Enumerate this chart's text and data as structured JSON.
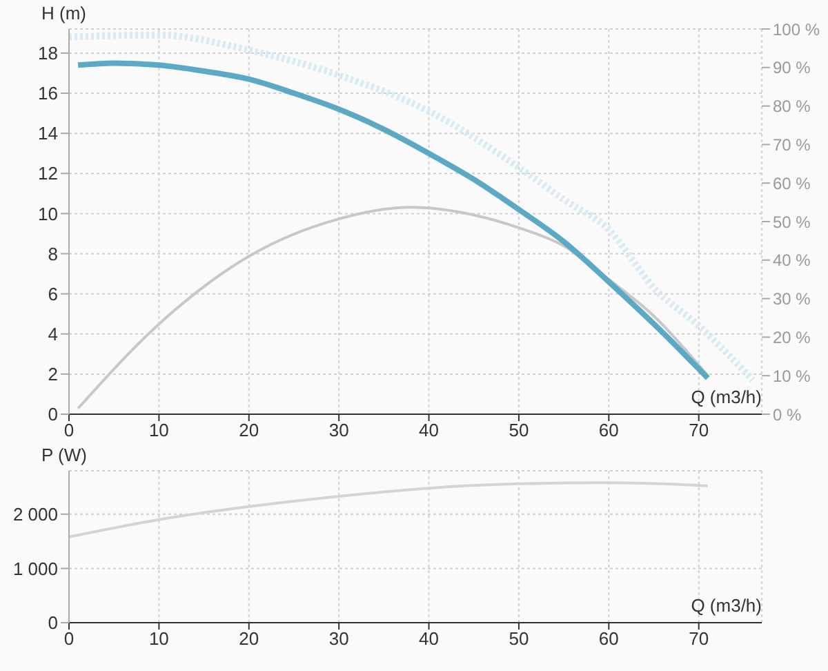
{
  "chart_data": [
    {
      "type": "line",
      "ylabel": "H (m)",
      "xlabel": "Q (m3/h)",
      "xlim": [
        0,
        77
      ],
      "xticks": [
        0,
        10,
        20,
        30,
        40,
        50,
        60,
        70
      ],
      "ylim": [
        0,
        19.2
      ],
      "yticks": [
        0,
        2,
        4,
        6,
        8,
        10,
        12,
        14,
        16,
        18
      ],
      "y2lim": [
        0,
        100
      ],
      "y2ticks": [
        {
          "value": 0,
          "label": "0 %"
        },
        {
          "value": 10,
          "label": "10 %"
        },
        {
          "value": 20,
          "label": "20 %"
        },
        {
          "value": 30,
          "label": "30 %"
        },
        {
          "value": 40,
          "label": "40 %"
        },
        {
          "value": 50,
          "label": "50 %"
        },
        {
          "value": 60,
          "label": "60 %"
        },
        {
          "value": 70,
          "label": "70 %"
        },
        {
          "value": 80,
          "label": "80 %"
        },
        {
          "value": 90,
          "label": "90 %"
        },
        {
          "value": 100,
          "label": "100 %"
        }
      ],
      "grid": true,
      "series": [
        {
          "color": "#d6ebf4",
          "line_style": "dotted",
          "x": [
            0,
            10,
            20,
            30,
            40,
            50,
            55,
            60,
            65,
            70,
            76
          ],
          "values": [
            18.8,
            18.9,
            18.15,
            16.9,
            15.1,
            12.3,
            10.7,
            9.2,
            6.3,
            4.4,
            1.7
          ]
        },
        {
          "color": "#c8c8c8",
          "axis": "y2",
          "x": [
            1,
            10,
            20,
            30,
            38,
            45,
            50,
            55,
            60,
            65,
            71
          ],
          "values": [
            1.5,
            23.4,
            41,
            50.7,
            53.7,
            51.7,
            48.4,
            43.7,
            35,
            25.5,
            10
          ]
        },
        {
          "color": "#5ba9c5",
          "x": [
            1,
            5,
            10,
            15,
            20,
            25,
            30,
            35,
            40,
            45,
            50,
            55,
            60,
            65,
            71
          ],
          "values": [
            17.4,
            17.5,
            17.4,
            17.1,
            16.7,
            16.0,
            15.2,
            14.2,
            13.0,
            11.7,
            10.2,
            8.6,
            6.6,
            4.5,
            1.8
          ]
        }
      ]
    },
    {
      "type": "line",
      "ylabel": "P (W)",
      "xlabel": "Q (m3/h)",
      "xlim": [
        0,
        77
      ],
      "xticks": [
        0,
        10,
        20,
        30,
        40,
        50,
        60,
        70
      ],
      "ylim": [
        0,
        2800
      ],
      "yticks": [
        0,
        {
          "value": 1000,
          "label": "1 000"
        },
        {
          "value": 2000,
          "label": "2 000"
        }
      ],
      "grid": true,
      "series": [
        {
          "color": "#d4d4d4",
          "x": [
            0,
            10,
            20,
            30,
            40,
            50,
            60,
            66,
            71
          ],
          "values": [
            1580,
            1900,
            2140,
            2330,
            2480,
            2560,
            2580,
            2560,
            2520
          ]
        }
      ]
    }
  ]
}
